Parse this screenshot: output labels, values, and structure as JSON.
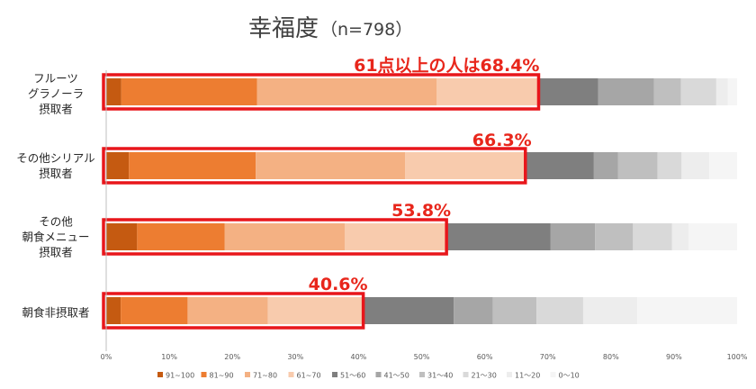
{
  "chart_data": {
    "type": "bar",
    "orientation": "horizontal",
    "stacked": true,
    "title": "幸福度",
    "subtitle": "（n=798）",
    "xlim": [
      0,
      100
    ],
    "x_ticks": [
      "0%",
      "10%",
      "20%",
      "30%",
      "40%",
      "50%",
      "60%",
      "70%",
      "80%",
      "90%",
      "100%"
    ],
    "legend_position": "bottom",
    "categories": [
      [
        "フルーツ",
        "グラノーラ",
        "摂取者"
      ],
      [
        "その他シリアル",
        "摂取者"
      ],
      [
        "その他",
        "朝食メニュー",
        "摂取者"
      ],
      [
        "朝食非摂取者"
      ]
    ],
    "series": [
      {
        "name": "91~100",
        "color": "#c55a11",
        "values": [
          2.4,
          3.6,
          4.9,
          2.3
        ]
      },
      {
        "name": "81~90",
        "color": "#ed7d31",
        "values": [
          21.5,
          20.1,
          13.9,
          10.6
        ]
      },
      {
        "name": "71~80",
        "color": "#f4b183",
        "values": [
          28.5,
          23.7,
          19.0,
          12.7
        ]
      },
      {
        "name": "61~70",
        "color": "#f8cbad",
        "values": [
          16.0,
          18.9,
          16.0,
          15.0
        ]
      },
      {
        "name": "51～60",
        "color": "#7f7f7f",
        "values": [
          9.6,
          11.0,
          16.6,
          14.5
        ]
      },
      {
        "name": "41～50",
        "color": "#a6a6a6",
        "values": [
          8.8,
          3.8,
          7.1,
          6.2
        ]
      },
      {
        "name": "31～40",
        "color": "#bfbfbf",
        "values": [
          4.3,
          6.3,
          6.0,
          6.9
        ]
      },
      {
        "name": "21～30",
        "color": "#d9d9d9",
        "values": [
          5.6,
          3.8,
          6.2,
          7.4
        ]
      },
      {
        "name": "11～20",
        "color": "#ededed",
        "values": [
          1.8,
          4.4,
          2.6,
          8.6
        ]
      },
      {
        "name": "0～10",
        "color": "#f5f5f5",
        "values": [
          1.5,
          4.4,
          7.7,
          15.8
        ]
      }
    ],
    "highlight_totals": [
      68.4,
      66.3,
      53.8,
      40.6
    ],
    "annotations": [
      "61点以上の人は68.4%",
      "66.3%",
      "53.8%",
      "40.6%"
    ],
    "highlight_color": "#e8161b"
  }
}
